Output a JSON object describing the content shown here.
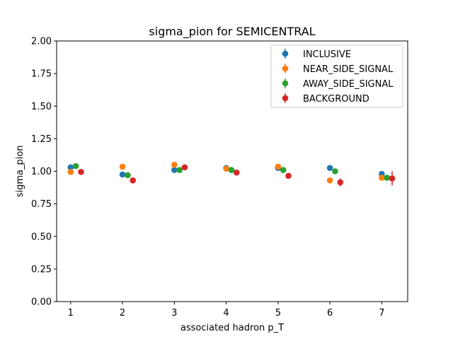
{
  "chart_data": {
    "type": "scatter",
    "title": "sigma_pion for SEMICENTRAL",
    "xlabel": "associated hadron p_T",
    "ylabel": "sigma_pion",
    "xlim": [
      0.73,
      7.5
    ],
    "ylim": [
      0.0,
      2.0
    ],
    "xticks": [
      1,
      2,
      3,
      4,
      5,
      6,
      7
    ],
    "yticks": [
      "0.00",
      "0.25",
      "0.50",
      "0.75",
      "1.00",
      "1.25",
      "1.50",
      "1.75",
      "2.00"
    ],
    "legend_position": "top-right",
    "grid": false,
    "series": [
      {
        "name": "INCLUSIVE",
        "color": "#1f77b4",
        "x": [
          1.0,
          2.0,
          3.0,
          4.0,
          5.0,
          6.0,
          7.0
        ],
        "y": [
          1.03,
          0.975,
          1.01,
          1.025,
          1.025,
          1.025,
          0.98
        ],
        "err": [
          0.005,
          0.005,
          0.005,
          0.005,
          0.005,
          0.006,
          0.01
        ]
      },
      {
        "name": "NEAR_SIDE_SIGNAL",
        "color": "#ff7f0e",
        "x": [
          1.0,
          2.0,
          3.0,
          4.0,
          5.0,
          6.0,
          7.0
        ],
        "y": [
          0.995,
          1.035,
          1.05,
          1.02,
          1.035,
          0.93,
          0.95
        ],
        "err": [
          0.006,
          0.006,
          0.006,
          0.006,
          0.008,
          0.01,
          0.012
        ]
      },
      {
        "name": "AWAY_SIDE_SIGNAL",
        "color": "#2ca02c",
        "x": [
          1.1,
          2.1,
          3.1,
          4.1,
          5.1,
          6.1,
          7.1
        ],
        "y": [
          1.04,
          0.97,
          1.01,
          1.01,
          1.01,
          1.0,
          0.95
        ],
        "err": [
          0.006,
          0.006,
          0.006,
          0.006,
          0.006,
          0.008,
          0.015
        ]
      },
      {
        "name": "BACKGROUND",
        "color": "#d62728",
        "x": [
          1.2,
          2.2,
          3.2,
          4.2,
          5.2,
          6.2,
          7.2
        ],
        "y": [
          0.995,
          0.93,
          1.03,
          0.99,
          0.965,
          0.915,
          0.945
        ],
        "err": [
          0.006,
          0.008,
          0.008,
          0.01,
          0.012,
          0.03,
          0.055
        ]
      }
    ]
  }
}
